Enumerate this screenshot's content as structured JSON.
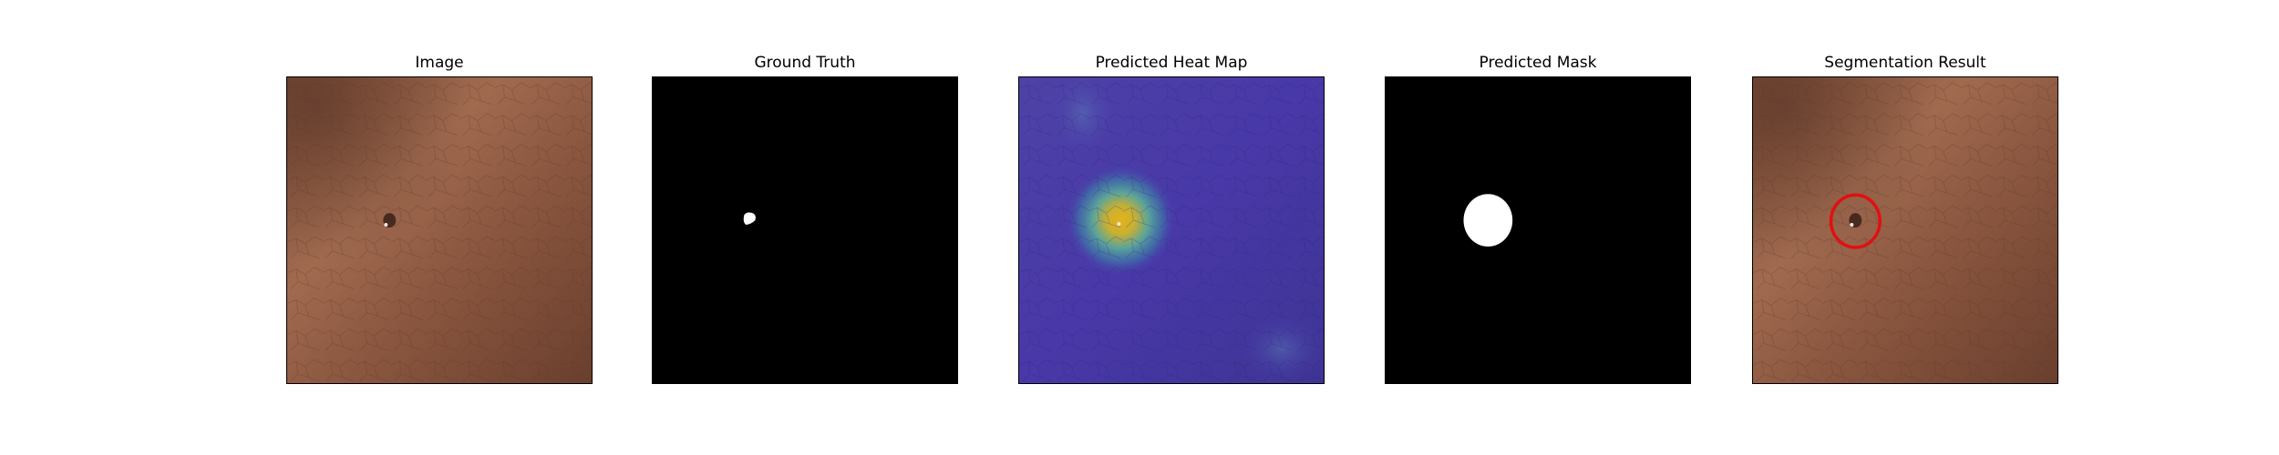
{
  "panels": [
    {
      "title": "Image"
    },
    {
      "title": "Ground Truth"
    },
    {
      "title": "Predicted Heat Map"
    },
    {
      "title": "Predicted Mask"
    },
    {
      "title": "Segmentation Result"
    }
  ],
  "colors": {
    "leather": "#8a563f",
    "leather_highlight": "#a56e52",
    "leather_shadow": "#5e382a",
    "mask_background": "#000000",
    "mask_foreground": "#ffffff",
    "heat_low": "#4a3aa8",
    "heat_high": "#e0b020",
    "result_marker": "#e01010"
  }
}
